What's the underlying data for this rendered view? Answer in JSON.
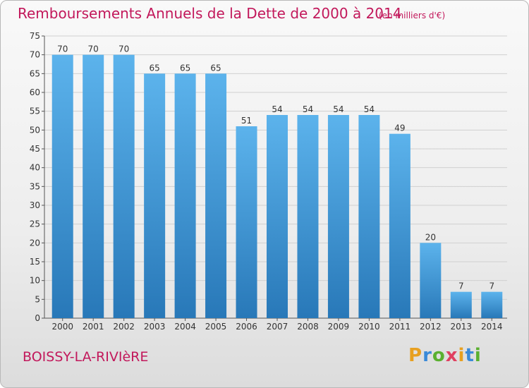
{
  "chart_data": {
    "type": "bar",
    "title": "Remboursements Annuels de la Dette de 2000 à 2014",
    "subtitle": "(en milliers d'€)",
    "categories": [
      "2000",
      "2001",
      "2002",
      "2003",
      "2004",
      "2005",
      "2006",
      "2007",
      "2008",
      "2009",
      "2010",
      "2011",
      "2012",
      "2013",
      "2014"
    ],
    "values": [
      70,
      70,
      70,
      65,
      65,
      65,
      51,
      54,
      54,
      54,
      54,
      49,
      20,
      7,
      7
    ],
    "ylim": [
      0,
      75
    ],
    "yticks": [
      0,
      5,
      10,
      15,
      20,
      25,
      30,
      35,
      40,
      45,
      50,
      55,
      60,
      65,
      70,
      75
    ],
    "xlabel": "",
    "ylabel": "",
    "grid": true,
    "colors": {
      "bar_top": "#5cb3ec",
      "bar_bottom": "#2878b8",
      "grid": "#d0d0d0",
      "accent": "#c2185b"
    }
  },
  "footer": {
    "commune": "BOISSY-LA-RIVIèRE",
    "logo": {
      "letters": [
        "P",
        "r",
        "o",
        "x",
        "i",
        "t",
        "i"
      ],
      "colors": [
        "#e8a020",
        "#3a8ad8",
        "#5ab030",
        "#e04060",
        "#e8a020",
        "#3a8ad8",
        "#5ab030"
      ]
    }
  }
}
